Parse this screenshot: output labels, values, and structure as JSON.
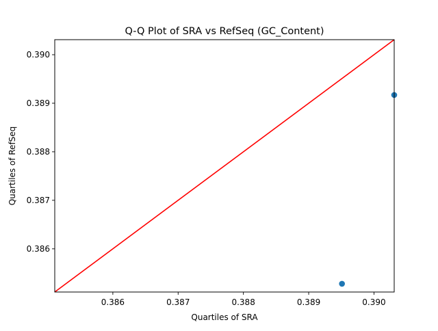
{
  "chart_data": {
    "type": "scatter",
    "title": "Q-Q Plot of SRA vs RefSeq (GC_Content)",
    "xlabel": "Quartiles of SRA",
    "ylabel": "Quartiles of RefSeq",
    "xlim": [
      0.38511,
      0.39031
    ],
    "ylim": [
      0.38511,
      0.39031
    ],
    "x_ticks": [
      0.386,
      0.387,
      0.388,
      0.389,
      0.39
    ],
    "x_tick_labels": [
      "0.386",
      "0.387",
      "0.388",
      "0.389",
      "0.390"
    ],
    "y_ticks": [
      0.386,
      0.387,
      0.388,
      0.389,
      0.39
    ],
    "y_tick_labels": [
      "0.386",
      "0.387",
      "0.388",
      "0.389",
      "0.390"
    ],
    "grid": false,
    "legend": "none",
    "series": [
      {
        "kind": "points",
        "color": "#1f77b4",
        "x": [
          0.38951,
          0.39031
        ],
        "y": [
          0.38528,
          0.38917
        ]
      },
      {
        "kind": "reference-line",
        "color": "#ff0000",
        "x": [
          0.38511,
          0.39031
        ],
        "y": [
          0.38511,
          0.39031
        ]
      }
    ]
  }
}
